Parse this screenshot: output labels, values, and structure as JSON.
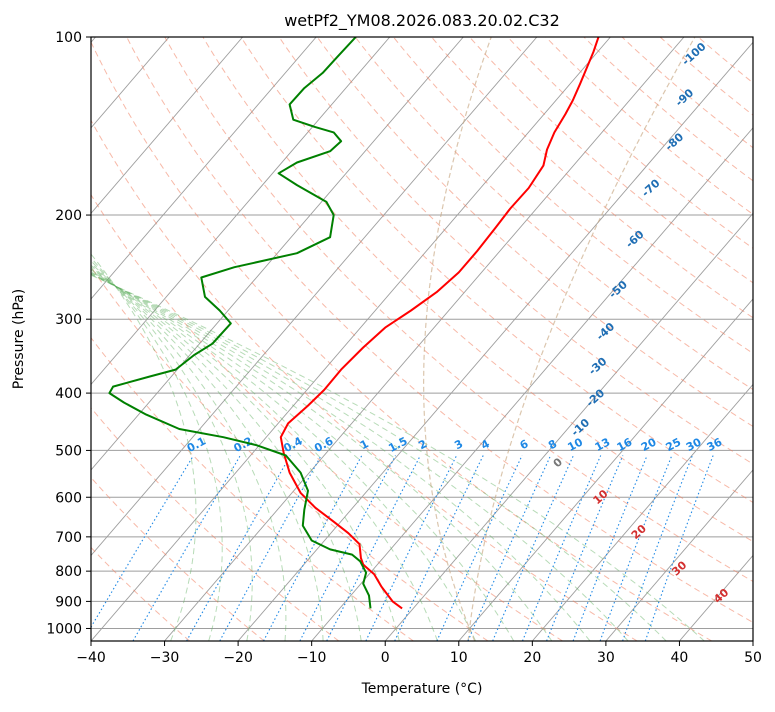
{
  "chart_data": {
    "type": "line",
    "title": "wetPf2_YM08.2026.083.20.02.C32",
    "xlabel": "Temperature (°C)",
    "ylabel": "Pressure (hPa)",
    "xlim": [
      -40,
      50
    ],
    "ylim": [
      1050,
      100
    ],
    "y_scale": "log",
    "x_ticks": [
      "−40",
      "−30",
      "−20",
      "−10",
      "0",
      "10",
      "20",
      "30",
      "40",
      "50"
    ],
    "y_ticks": [
      "100",
      "200",
      "300",
      "400",
      "500",
      "600",
      "700",
      "800",
      "900",
      "1000"
    ],
    "y_tick_values": [
      100,
      200,
      300,
      400,
      500,
      600,
      700,
      800,
      900,
      1000
    ],
    "grid": true,
    "series": [
      {
        "color": "#ff0000",
        "points": [
          [
            2.3,
            925
          ],
          [
            1.0,
            900
          ],
          [
            -0.5,
            850
          ],
          [
            -1.5,
            810
          ],
          [
            -3.0,
            780
          ],
          [
            -3.3,
            760
          ],
          [
            -3.5,
            720
          ],
          [
            -5.0,
            690
          ],
          [
            -7.0,
            660
          ],
          [
            -9.5,
            625
          ],
          [
            -11.5,
            590
          ],
          [
            -13.0,
            545
          ],
          [
            -13.8,
            505
          ],
          [
            -14.2,
            475
          ],
          [
            -13.2,
            450
          ],
          [
            -10.5,
            420
          ],
          [
            -8.3,
            395
          ],
          [
            -6.0,
            365
          ],
          [
            -3.0,
            335
          ],
          [
            0.0,
            310
          ],
          [
            3.5,
            290
          ],
          [
            7.0,
            270
          ],
          [
            10.0,
            250
          ],
          [
            12.5,
            230
          ],
          [
            15.0,
            210
          ],
          [
            17.0,
            195
          ],
          [
            19.5,
            180
          ],
          [
            21.5,
            165
          ],
          [
            22.0,
            155
          ],
          [
            23.0,
            145
          ],
          [
            24.5,
            135
          ],
          [
            25.5,
            128
          ],
          [
            26.5,
            120
          ],
          [
            27.5,
            112
          ],
          [
            28.3,
            106
          ],
          [
            29.0,
            100
          ]
        ]
      },
      {
        "color": "#008000",
        "points": [
          [
            -2.0,
            925
          ],
          [
            -2.2,
            880
          ],
          [
            -3.0,
            840
          ],
          [
            -2.6,
            805
          ],
          [
            -3.4,
            770
          ],
          [
            -4.5,
            750
          ],
          [
            -7.5,
            735
          ],
          [
            -10.0,
            710
          ],
          [
            -11.2,
            670
          ],
          [
            -11.0,
            630
          ],
          [
            -10.5,
            585
          ],
          [
            -11.5,
            545
          ],
          [
            -13.5,
            510
          ],
          [
            -17.5,
            490
          ],
          [
            -22.0,
            475
          ],
          [
            -28.0,
            460
          ],
          [
            -32.5,
            435
          ],
          [
            -35.5,
            415
          ],
          [
            -37.5,
            400
          ],
          [
            -37.0,
            390
          ],
          [
            -32.0,
            375
          ],
          [
            -28.5,
            365
          ],
          [
            -26.0,
            345
          ],
          [
            -23.5,
            330
          ],
          [
            -21.0,
            305
          ],
          [
            -22.5,
            290
          ],
          [
            -24.5,
            275
          ],
          [
            -25.0,
            255
          ],
          [
            -20.5,
            245
          ],
          [
            -12.0,
            232
          ],
          [
            -7.5,
            218
          ],
          [
            -7.0,
            200
          ],
          [
            -8.0,
            190
          ],
          [
            -12.0,
            178
          ],
          [
            -14.5,
            170
          ],
          [
            -12.0,
            163
          ],
          [
            -7.5,
            156
          ],
          [
            -6.0,
            150
          ],
          [
            -7.0,
            145
          ],
          [
            -9.5,
            142
          ],
          [
            -12.5,
            138
          ],
          [
            -13.0,
            130
          ],
          [
            -11.0,
            122
          ],
          [
            -8.5,
            115
          ],
          [
            -6.5,
            108
          ],
          [
            -4.0,
            100
          ]
        ]
      }
    ],
    "dry_adiabat_labels": [
      "-100",
      "-90",
      "-80",
      "-70",
      "-60",
      "-50",
      "-40",
      "-30",
      "-20",
      "-10",
      "0",
      "10",
      "20",
      "30",
      "40"
    ],
    "mixing_ratio_labels": [
      "0.1",
      "0.2",
      "0.4",
      "0.6",
      "1",
      "1.5",
      "2",
      "3",
      "4",
      "6",
      "8",
      "10",
      "13",
      "16",
      "20",
      "25",
      "30",
      "36"
    ],
    "colors": {
      "temperature": "#ff0000",
      "dewpoint": "#008000",
      "isotherm": "#9e9e9e",
      "dry_adiabat": "#f08060",
      "moist_adiabat": "#60b060",
      "mixing_ratio": "#1e88e5",
      "label_adiabat": "#1f6eb4",
      "label_hot": "#d32f2f",
      "label_zero": "#777777",
      "ref_curve": "#c8a882"
    }
  }
}
